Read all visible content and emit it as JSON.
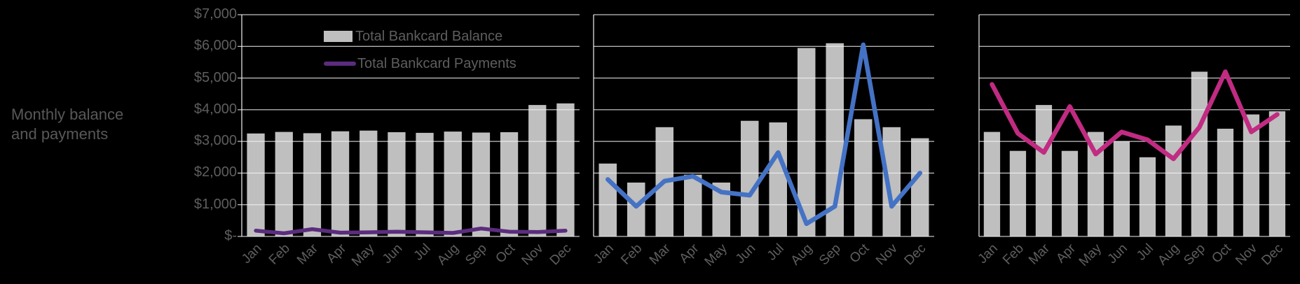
{
  "background": "#000000",
  "title": {
    "line1": "Monthly balance",
    "line2": "and payments"
  },
  "colors": {
    "bar": "#BFBFBF",
    "purple_line": "#5B2C7E",
    "blue_line": "#4472C4",
    "pink_line": "#C12B82",
    "grid": "#F2F2F2",
    "text": "#5E5E5E",
    "title_text": "#585858"
  },
  "legend": {
    "items": [
      {
        "label": "Total Bankcard Balance",
        "swatch": "bar",
        "color": "#BFBFBF"
      },
      {
        "label": "Total Bankcard Payments",
        "swatch": "line",
        "color": "#5B2C7E"
      }
    ]
  },
  "y_axis": {
    "min": 0,
    "max": 7000,
    "step": 1000,
    "tick_labels": [
      "$7,000",
      "$6,000",
      "$5,000",
      "$4,000",
      "$3,000",
      "$2,000",
      "$1,000",
      "$-"
    ]
  },
  "months": [
    "Jan",
    "Feb",
    "Mar",
    "Apr",
    "May",
    "Jun",
    "Jul",
    "Aug",
    "Sep",
    "Oct",
    "Nov",
    "Dec"
  ],
  "chart_data": [
    {
      "type": "bar+line",
      "title": "",
      "categories": [
        "Jan",
        "Feb",
        "Mar",
        "Apr",
        "May",
        "Jun",
        "Jul",
        "Aug",
        "Sep",
        "Oct",
        "Nov",
        "Dec"
      ],
      "ylim": [
        0,
        7000
      ],
      "grid": true,
      "y_tick_labels_visible": true,
      "series": [
        {
          "name": "Total Bankcard Balance",
          "kind": "bar",
          "color": "#BFBFBF",
          "values": [
            3250,
            3300,
            3260,
            3320,
            3340,
            3290,
            3270,
            3310,
            3280,
            3290,
            4150,
            4200
          ]
        },
        {
          "name": "Total Bankcard Payments",
          "kind": "line",
          "color": "#5B2C7E",
          "values": [
            180,
            100,
            230,
            120,
            130,
            150,
            130,
            110,
            250,
            150,
            140,
            180
          ]
        }
      ]
    },
    {
      "type": "bar+line",
      "title": "",
      "categories": [
        "Jan",
        "Feb",
        "Mar",
        "Apr",
        "May",
        "Jun",
        "Jul",
        "Aug",
        "Sep",
        "Oct",
        "Nov",
        "Dec"
      ],
      "ylim": [
        0,
        7000
      ],
      "grid": true,
      "y_tick_labels_visible": false,
      "series": [
        {
          "name": "Total Bankcard Balance",
          "kind": "bar",
          "color": "#BFBFBF",
          "values": [
            2300,
            1700,
            3450,
            1950,
            1700,
            3650,
            3600,
            5950,
            6100,
            3700,
            3450,
            3100
          ]
        },
        {
          "name": "Total Bankcard Payments",
          "kind": "line",
          "color": "#4472C4",
          "values": [
            1800,
            950,
            1750,
            1900,
            1400,
            1300,
            2650,
            400,
            950,
            6050,
            950,
            2000
          ]
        }
      ]
    },
    {
      "type": "bar+line",
      "title": "",
      "categories": [
        "Jan",
        "Feb",
        "Mar",
        "Apr",
        "May",
        "Jun",
        "Jul",
        "Aug",
        "Sep",
        "Oct",
        "Nov",
        "Dec"
      ],
      "ylim": [
        0,
        7000
      ],
      "grid": true,
      "y_tick_labels_visible": false,
      "series": [
        {
          "name": "Total Bankcard Balance",
          "kind": "bar",
          "color": "#BFBFBF",
          "values": [
            3300,
            2700,
            4150,
            2700,
            3300,
            3000,
            2500,
            3500,
            5200,
            3400,
            3850,
            3950
          ]
        },
        {
          "name": "Total Bankcard Payments",
          "kind": "line",
          "color": "#C12B82",
          "values": [
            4800,
            3250,
            2650,
            4100,
            2600,
            3300,
            3050,
            2450,
            3450,
            5200,
            3300,
            3850
          ]
        }
      ]
    }
  ]
}
